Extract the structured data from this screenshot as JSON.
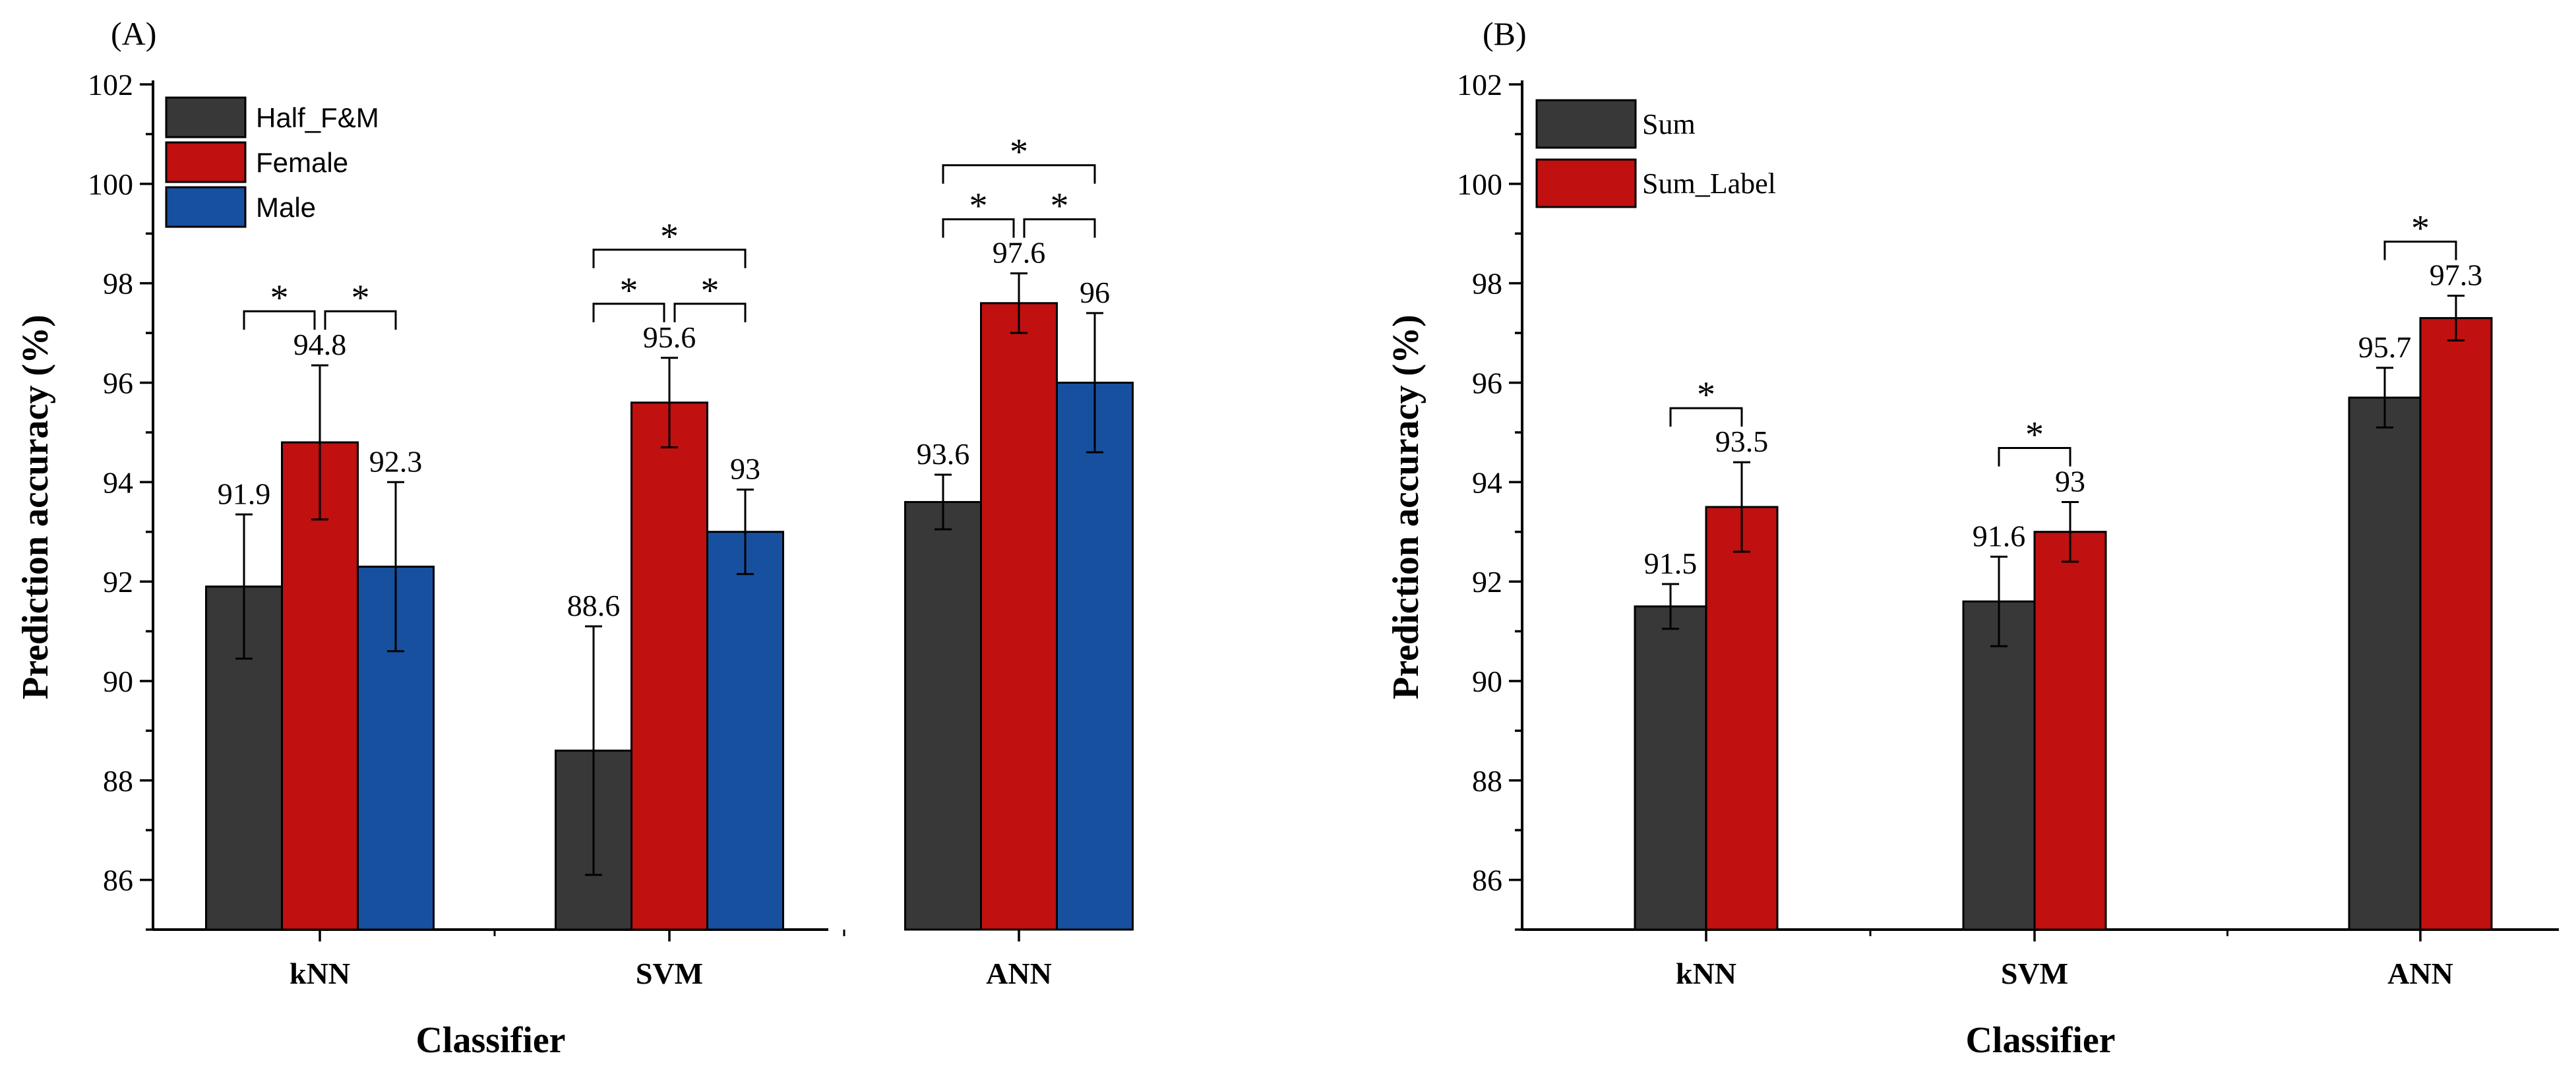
{
  "chart_data": [
    {
      "type": "bar",
      "panel_label": "(A)",
      "categories": [
        "kNN",
        "SVM",
        "ANN"
      ],
      "series": [
        {
          "name": "Half_F&M",
          "color": "#383838",
          "values": [
            91.9,
            88.6,
            93.6
          ],
          "errors": [
            1.45,
            2.5,
            0.55
          ],
          "labels": [
            "91.9",
            "88.6",
            "93.6"
          ]
        },
        {
          "name": "Female",
          "color": "#c01010",
          "values": [
            94.8,
            95.6,
            97.6
          ],
          "errors": [
            1.55,
            0.9,
            0.6
          ],
          "labels": [
            "94.8",
            "95.6",
            "97.6"
          ]
        },
        {
          "name": "Male",
          "color": "#1850a0",
          "values": [
            92.3,
            93.0,
            96.0
          ],
          "errors": [
            1.7,
            0.85,
            1.4
          ],
          "labels": [
            "92.3",
            "93",
            "96"
          ]
        }
      ],
      "xlabel": "Classifier",
      "ylabel": "Prediction accuracy (%)",
      "ylim": [
        85,
        102
      ],
      "yticks": [
        "86",
        "88",
        "90",
        "92",
        "94",
        "96",
        "98",
        "100",
        "102"
      ],
      "legend_position": "top-left",
      "significance": [
        {
          "category": 0,
          "from": 0,
          "to": 1,
          "level": 1,
          "marker": "*"
        },
        {
          "category": 0,
          "from": 1,
          "to": 2,
          "level": 1,
          "marker": "*"
        },
        {
          "category": 1,
          "from": 0,
          "to": 1,
          "level": 1,
          "marker": "*"
        },
        {
          "category": 1,
          "from": 1,
          "to": 2,
          "level": 1,
          "marker": "*"
        },
        {
          "category": 1,
          "from": 0,
          "to": 2,
          "level": 2,
          "marker": "*"
        },
        {
          "category": 2,
          "from": 0,
          "to": 1,
          "level": 1,
          "marker": "*"
        },
        {
          "category": 2,
          "from": 1,
          "to": 2,
          "level": 1,
          "marker": "*"
        },
        {
          "category": 2,
          "from": 0,
          "to": 2,
          "level": 2,
          "marker": "*"
        }
      ]
    },
    {
      "type": "bar",
      "panel_label": "(B)",
      "categories": [
        "kNN",
        "SVM",
        "ANN"
      ],
      "series": [
        {
          "name": "Sum",
          "color": "#383838",
          "values": [
            91.5,
            91.6,
            95.7
          ],
          "errors": [
            0.45,
            0.9,
            0.6
          ],
          "labels": [
            "91.5",
            "91.6",
            "95.7"
          ]
        },
        {
          "name": "Sum_Label",
          "color": "#c01010",
          "values": [
            93.5,
            93.0,
            97.3
          ],
          "errors": [
            0.9,
            0.6,
            0.45
          ],
          "labels": [
            "93.5",
            "93",
            "97.3"
          ]
        }
      ],
      "xlabel": "Classifier",
      "ylabel": "Prediction accuracy (%)",
      "ylim": [
        85,
        102
      ],
      "yticks": [
        "86",
        "88",
        "90",
        "92",
        "94",
        "96",
        "98",
        "100",
        "102"
      ],
      "legend_position": "top-left",
      "significance": [
        {
          "category": 0,
          "from": 0,
          "to": 1,
          "level": 1,
          "marker": "*"
        },
        {
          "category": 1,
          "from": 0,
          "to": 1,
          "level": 1,
          "marker": "*"
        },
        {
          "category": 2,
          "from": 0,
          "to": 1,
          "level": 1,
          "marker": "*"
        }
      ]
    }
  ]
}
